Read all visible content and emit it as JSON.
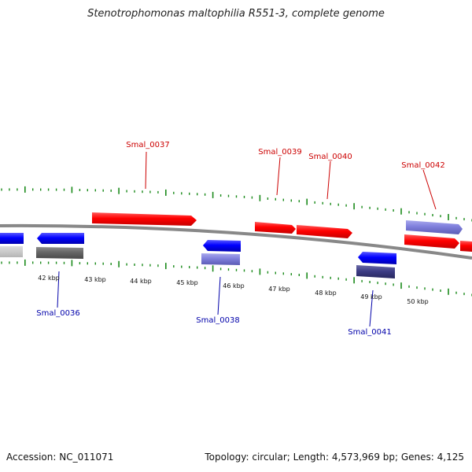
{
  "title": "Stenotrophomonas maltophilia R551-3, complete genome",
  "footer": {
    "accession": "Accession: NC_011071",
    "summary": "Topology: circular; Length: 4,573,969 bp; Genes: 4,125"
  },
  "colors": {
    "forward_label": "#cc0000",
    "reverse_label": "#0000aa",
    "tick": "#1a8a1a",
    "backbone": "#888888"
  },
  "scale_labels": [
    "42 kbp",
    "43 kbp",
    "44 kbp",
    "45 kbp",
    "46 kbp",
    "47 kbp",
    "48 kbp",
    "49 kbp",
    "50 kbp"
  ],
  "genes": [
    {
      "name": "Smal_0037",
      "strand": "forward",
      "label_visible": true
    },
    {
      "name": "Smal_0039",
      "strand": "forward",
      "label_visible": true
    },
    {
      "name": "Smal_0040",
      "strand": "forward",
      "label_visible": true
    },
    {
      "name": "Smal_0042",
      "strand": "forward",
      "label_visible": true
    },
    {
      "name": "Smal_0036",
      "strand": "reverse",
      "label_visible": true
    },
    {
      "name": "Smal_0038",
      "strand": "reverse",
      "label_visible": true
    },
    {
      "name": "Smal_0041",
      "strand": "reverse",
      "label_visible": true
    }
  ]
}
